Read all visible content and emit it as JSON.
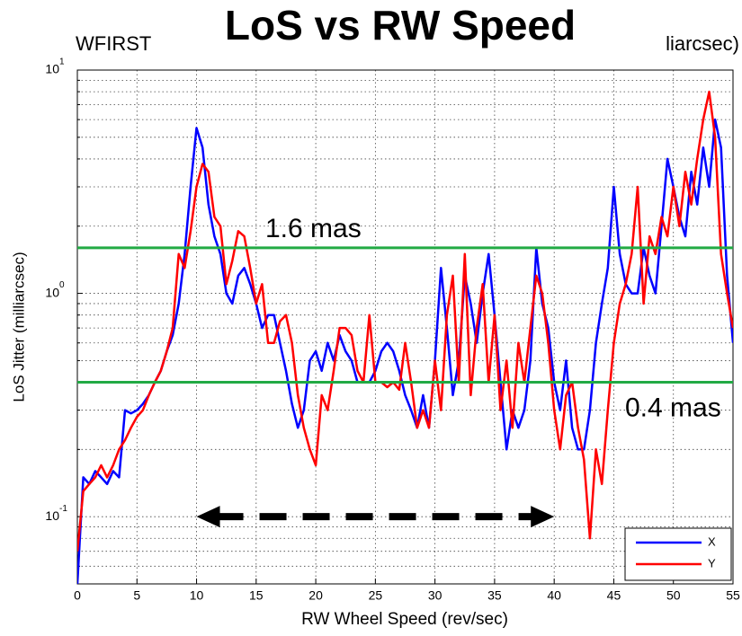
{
  "chart_data": {
    "type": "line",
    "title": "LoS vs RW Speed",
    "annotations_top": [
      "WFIRST",
      "liarcsec)"
    ],
    "xlabel": "RW Wheel Speed (rev/sec)",
    "ylabel": "LoS Jitter (milliarcsec)",
    "log_y": true,
    "grid": true,
    "legend": "lower right",
    "xlim": [
      0,
      55
    ],
    "ylim": [
      0.05,
      10
    ],
    "xticks": [
      0,
      5,
      10,
      15,
      20,
      25,
      30,
      35,
      40,
      45,
      50,
      55
    ],
    "yticks": [
      {
        "value": 0.1,
        "label": "10",
        "sup": "-1"
      },
      {
        "value": 1,
        "label": "10",
        "sup": "0"
      },
      {
        "value": 10,
        "label": "10",
        "sup": "1"
      }
    ],
    "yticks_minor": [
      0.06,
      0.07,
      0.08,
      0.09,
      0.2,
      0.3,
      0.4,
      0.5,
      0.6,
      0.7,
      0.8,
      0.9,
      2,
      3,
      4,
      5,
      6,
      7,
      8,
      9
    ],
    "reference_lines": [
      {
        "value": 1.6,
        "label": "1.6 mas",
        "color": "#22aa44"
      },
      {
        "value": 0.4,
        "label": "0.4 mas",
        "color": "#22aa44"
      }
    ],
    "arrow": {
      "x": [
        10,
        40
      ],
      "y": 0.1
    },
    "x": [
      0,
      0.5,
      1,
      1.5,
      2,
      2.5,
      3,
      3.5,
      4,
      4.5,
      5,
      5.5,
      6,
      6.5,
      7,
      7.5,
      8,
      8.5,
      9,
      9.5,
      10,
      10.5,
      11,
      11.5,
      12,
      12.5,
      13,
      13.5,
      14,
      14.5,
      15,
      15.5,
      16,
      16.5,
      17,
      17.5,
      18,
      18.5,
      19,
      19.5,
      20,
      20.5,
      21,
      21.5,
      22,
      22.5,
      23,
      23.5,
      24,
      24.5,
      25,
      25.5,
      26,
      26.5,
      27,
      27.5,
      28,
      28.5,
      29,
      29.5,
      30,
      30.5,
      31,
      31.5,
      32,
      32.5,
      33,
      33.5,
      34,
      34.5,
      35,
      35.5,
      36,
      36.5,
      37,
      37.5,
      38,
      38.5,
      39,
      39.5,
      40,
      40.5,
      41,
      41.5,
      42,
      42.5,
      43,
      43.5,
      44,
      44.5,
      45,
      45.5,
      46,
      46.5,
      47,
      47.5,
      48,
      48.5,
      49,
      49.5,
      50,
      50.5,
      51,
      51.5,
      52,
      52.5,
      53,
      53.5,
      54,
      54.5,
      55
    ],
    "series": [
      {
        "name": "X",
        "color": "#0000ff",
        "values": [
          0.05,
          0.15,
          0.14,
          0.16,
          0.15,
          0.14,
          0.16,
          0.15,
          0.3,
          0.29,
          0.3,
          0.32,
          0.35,
          0.4,
          0.45,
          0.55,
          0.65,
          0.9,
          1.5,
          3,
          5.5,
          4.5,
          2.5,
          1.8,
          1.5,
          1.0,
          0.9,
          1.2,
          1.3,
          1.1,
          0.9,
          0.7,
          0.8,
          0.8,
          0.6,
          0.45,
          0.32,
          0.25,
          0.3,
          0.5,
          0.55,
          0.45,
          0.6,
          0.5,
          0.65,
          0.55,
          0.5,
          0.4,
          0.4,
          0.4,
          0.45,
          0.55,
          0.6,
          0.55,
          0.45,
          0.35,
          0.3,
          0.25,
          0.35,
          0.25,
          0.5,
          1.3,
          0.7,
          0.35,
          0.5,
          1.2,
          0.9,
          0.6,
          1.0,
          1.5,
          0.8,
          0.4,
          0.2,
          0.3,
          0.25,
          0.3,
          0.5,
          1.6,
          0.9,
          0.7,
          0.4,
          0.3,
          0.5,
          0.25,
          0.2,
          0.2,
          0.3,
          0.6,
          0.9,
          1.3,
          3,
          1.5,
          1.1,
          1.0,
          1.0,
          1.6,
          1.2,
          1.0,
          2.0,
          4.0,
          3.0,
          2.2,
          1.8,
          3.5,
          2.5,
          4.5,
          3.0,
          6.0,
          4.5,
          1.2,
          0.6
        ]
      },
      {
        "name": "Y",
        "color": "#ff0000",
        "values": [
          0.07,
          0.13,
          0.14,
          0.15,
          0.17,
          0.15,
          0.17,
          0.2,
          0.22,
          0.25,
          0.28,
          0.3,
          0.35,
          0.4,
          0.45,
          0.55,
          0.7,
          1.5,
          1.3,
          1.9,
          3.0,
          3.8,
          3.5,
          2.2,
          2.0,
          1.1,
          1.4,
          1.9,
          1.8,
          1.3,
          0.9,
          1.1,
          0.6,
          0.6,
          0.75,
          0.8,
          0.6,
          0.35,
          0.25,
          0.2,
          0.17,
          0.35,
          0.3,
          0.45,
          0.7,
          0.7,
          0.65,
          0.45,
          0.4,
          0.8,
          0.4,
          0.4,
          0.38,
          0.4,
          0.37,
          0.6,
          0.4,
          0.25,
          0.3,
          0.25,
          0.5,
          0.3,
          0.8,
          1.2,
          0.4,
          1.5,
          0.35,
          0.7,
          1.1,
          0.4,
          0.8,
          0.3,
          0.5,
          0.25,
          0.6,
          0.4,
          0.7,
          1.2,
          1.0,
          0.6,
          0.3,
          0.2,
          0.35,
          0.4,
          0.25,
          0.18,
          0.08,
          0.2,
          0.14,
          0.3,
          0.6,
          0.9,
          1.1,
          1.5,
          3.0,
          0.9,
          1.8,
          1.5,
          2.2,
          1.8,
          3.0,
          2.0,
          3.5,
          2.5,
          4.0,
          6.0,
          8.0,
          5.0,
          1.5,
          1.0,
          0.7
        ]
      }
    ]
  }
}
